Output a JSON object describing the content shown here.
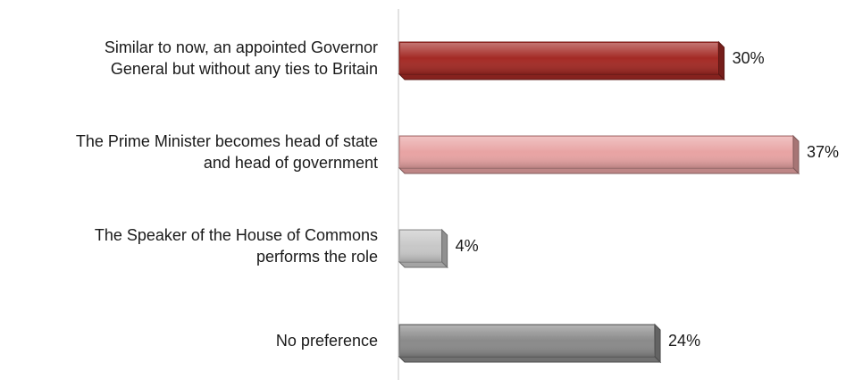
{
  "chart_data": {
    "type": "bar",
    "orientation": "horizontal",
    "categories": [
      [
        "Similar to now, an appointed Governor",
        "General but without any ties to Britain"
      ],
      [
        "The Prime Minister becomes head of state",
        "and head of government"
      ],
      [
        "The Speaker of the House of Commons",
        "performs the role"
      ],
      [
        "No preference"
      ]
    ],
    "values": [
      30,
      37,
      4,
      24
    ],
    "value_labels": [
      "30%",
      "37%",
      "4%",
      "24%"
    ],
    "bar_colors": [
      "#a42a25",
      "#e8a3a3",
      "#c8c8c8",
      "#8a8a8a"
    ],
    "xlim": [
      0,
      40
    ],
    "grid": false,
    "legend": "none",
    "title": "",
    "xlabel": "",
    "ylabel": ""
  }
}
